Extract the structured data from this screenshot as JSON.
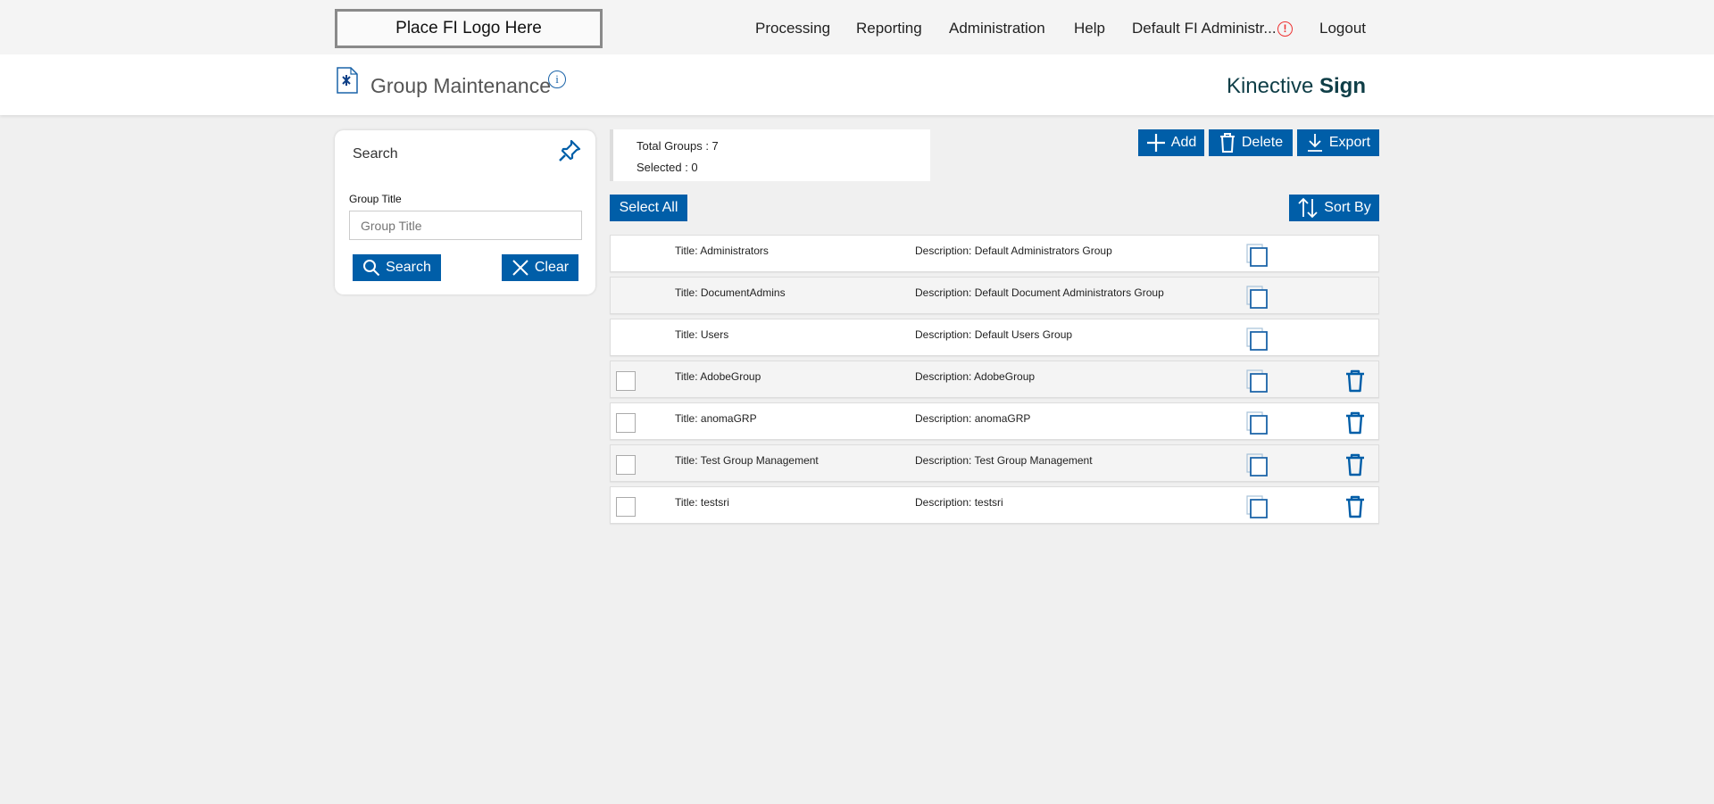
{
  "topbar": {
    "logo": "Place FI Logo Here",
    "nav": [
      "Processing",
      "Reporting",
      "Administration",
      "Help",
      "Default FI Administr...",
      "Logout"
    ],
    "alert": "!"
  },
  "header": {
    "title": "Group Maintenance",
    "info": "i",
    "brand_light": "Kinective",
    "brand_bold": "Sign"
  },
  "search": {
    "heading": "Search",
    "field_label": "Group Title",
    "placeholder": "Group Title",
    "search_label": "Search",
    "clear_label": "Clear"
  },
  "stats": {
    "total": "Total Groups : 7",
    "selected": "Selected : 0"
  },
  "toolbar": {
    "add": "Add",
    "delete": "Delete",
    "export": "Export",
    "select_all": "Select All",
    "sort_by": "Sort By"
  },
  "colors": {
    "accent": "#005ea8",
    "alert": "#ee3333"
  },
  "groups": [
    {
      "title": "Title:  Administrators",
      "desc": "Description: Default Administrators Group",
      "deletable": false
    },
    {
      "title": "Title:  DocumentAdmins",
      "desc": "Description: Default Document Administrators Group",
      "deletable": false
    },
    {
      "title": "Title:  Users",
      "desc": "Description: Default Users Group",
      "deletable": false
    },
    {
      "title": "Title:  AdobeGroup",
      "desc": "Description: AdobeGroup",
      "deletable": true
    },
    {
      "title": "Title:  anomaGRP",
      "desc": "Description: anomaGRP",
      "deletable": true
    },
    {
      "title": "Title:  Test Group Management",
      "desc": "Description: Test Group Management",
      "deletable": true
    },
    {
      "title": "Title:  testsri",
      "desc": "Description: testsri",
      "deletable": true
    }
  ]
}
